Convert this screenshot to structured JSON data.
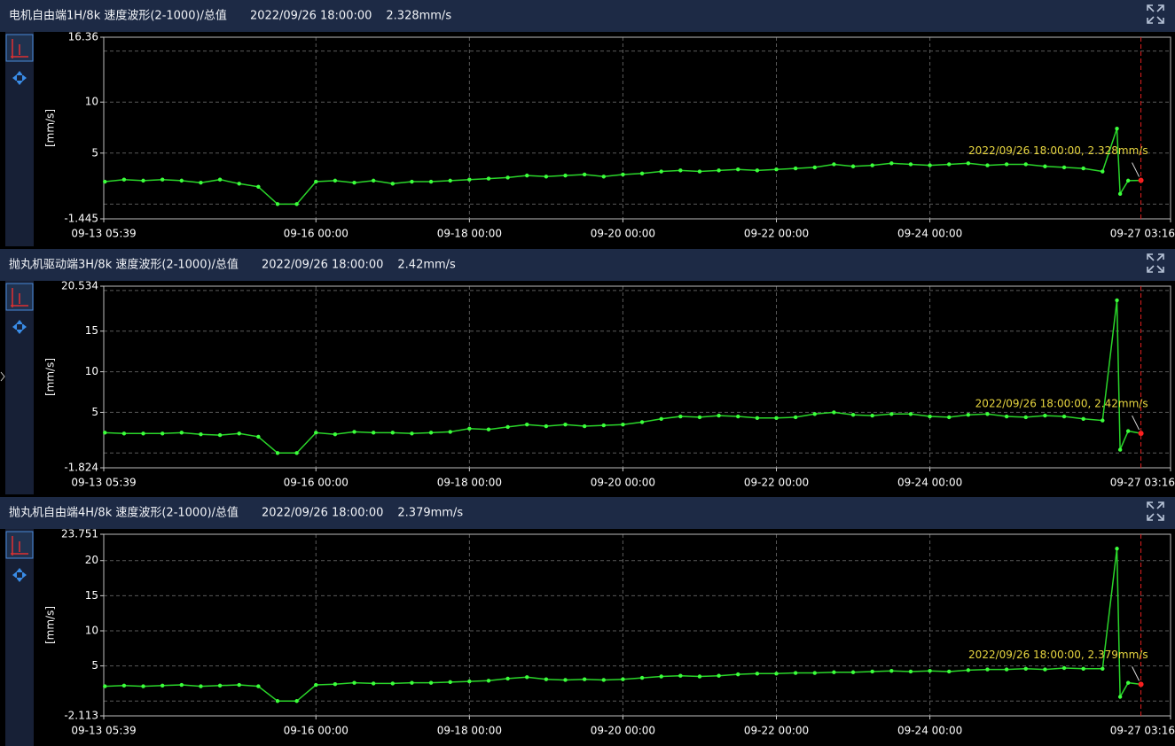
{
  "chart_data": [
    {
      "type": "line",
      "title": "电机自由端1H/8k 速度波形(2-1000)/总值",
      "time": "2022/09/26 18:00:00",
      "value_text": "2.328mm/s",
      "y_label": "[mm/s]",
      "annotation": "2022/09/26 18:00:00, 2.328mm/s",
      "xlim": [
        "09-13 05:39",
        "09-27 03:16"
      ],
      "xticks": [
        "09-13 05:39",
        "09-16 00:00",
        "09-18 00:00",
        "09-20 00:00",
        "09-22 00:00",
        "09-24 00:00",
        "09-27 03:16"
      ],
      "ylim": [
        -1.445,
        16.36
      ],
      "yticks": [
        -1.445,
        5,
        10,
        16.36
      ],
      "ygrid": [
        0,
        15
      ],
      "grid": true,
      "x": [
        "09-13 06:00",
        "09-13 12:00",
        "09-13 18:00",
        "09-14 00:00",
        "09-14 06:00",
        "09-14 12:00",
        "09-14 18:00",
        "09-15 00:00",
        "09-15 06:00",
        "09-15 12:00",
        "09-15 18:00",
        "09-16 00:00",
        "09-16 06:00",
        "09-16 12:00",
        "09-16 18:00",
        "09-17 00:00",
        "09-17 06:00",
        "09-17 12:00",
        "09-17 18:00",
        "09-18 00:00",
        "09-18 06:00",
        "09-18 12:00",
        "09-18 18:00",
        "09-19 00:00",
        "09-19 06:00",
        "09-19 12:00",
        "09-19 18:00",
        "09-20 00:00",
        "09-20 06:00",
        "09-20 12:00",
        "09-20 18:00",
        "09-21 00:00",
        "09-21 06:00",
        "09-21 12:00",
        "09-21 18:00",
        "09-22 00:00",
        "09-22 06:00",
        "09-22 12:00",
        "09-22 18:00",
        "09-23 00:00",
        "09-23 06:00",
        "09-23 12:00",
        "09-23 18:00",
        "09-24 00:00",
        "09-24 06:00",
        "09-24 12:00",
        "09-24 18:00",
        "09-25 00:00",
        "09-25 06:00",
        "09-25 12:00",
        "09-25 18:00",
        "09-26 00:00",
        "09-26 06:00",
        "09-26 10:30",
        "09-26 11:30",
        "09-26 14:00",
        "09-26 18:00"
      ],
      "series": [
        {
          "color": "#2ad62a",
          "values": [
            2.2,
            2.4,
            2.3,
            2.4,
            2.3,
            2.1,
            2.4,
            2.0,
            1.7,
            0.0,
            0.0,
            2.2,
            2.3,
            2.1,
            2.3,
            2.0,
            2.2,
            2.2,
            2.3,
            2.4,
            2.5,
            2.6,
            2.8,
            2.7,
            2.8,
            2.9,
            2.7,
            2.9,
            3.0,
            3.2,
            3.3,
            3.2,
            3.3,
            3.4,
            3.3,
            3.4,
            3.5,
            3.6,
            3.9,
            3.7,
            3.8,
            4.0,
            3.9,
            3.8,
            3.9,
            4.0,
            3.8,
            3.9,
            3.9,
            3.7,
            3.6,
            3.5,
            3.2,
            7.4,
            1.0,
            2.3,
            2.328
          ]
        }
      ]
    },
    {
      "type": "line",
      "title": "抛丸机驱动端3H/8k 速度波形(2-1000)/总值",
      "time": "2022/09/26 18:00:00",
      "value_text": "2.42mm/s",
      "y_label": "[mm/s]",
      "annotation": "2022/09/26 18:00:00, 2.42mm/s",
      "xlim": [
        "09-13 05:39",
        "09-27 03:16"
      ],
      "xticks": [
        "09-13 05:39",
        "09-16 00:00",
        "09-18 00:00",
        "09-20 00:00",
        "09-22 00:00",
        "09-24 00:00",
        "09-27 03:16"
      ],
      "ylim": [
        -1.824,
        20.534
      ],
      "yticks": [
        -1.824,
        5,
        10,
        15,
        20.534
      ],
      "ygrid": [
        0,
        20
      ],
      "grid": true,
      "x": [
        "09-13 06:00",
        "09-13 12:00",
        "09-13 18:00",
        "09-14 00:00",
        "09-14 06:00",
        "09-14 12:00",
        "09-14 18:00",
        "09-15 00:00",
        "09-15 06:00",
        "09-15 12:00",
        "09-15 18:00",
        "09-16 00:00",
        "09-16 06:00",
        "09-16 12:00",
        "09-16 18:00",
        "09-17 00:00",
        "09-17 06:00",
        "09-17 12:00",
        "09-17 18:00",
        "09-18 00:00",
        "09-18 06:00",
        "09-18 12:00",
        "09-18 18:00",
        "09-19 00:00",
        "09-19 06:00",
        "09-19 12:00",
        "09-19 18:00",
        "09-20 00:00",
        "09-20 06:00",
        "09-20 12:00",
        "09-20 18:00",
        "09-21 00:00",
        "09-21 06:00",
        "09-21 12:00",
        "09-21 18:00",
        "09-22 00:00",
        "09-22 06:00",
        "09-22 12:00",
        "09-22 18:00",
        "09-23 00:00",
        "09-23 06:00",
        "09-23 12:00",
        "09-23 18:00",
        "09-24 00:00",
        "09-24 06:00",
        "09-24 12:00",
        "09-24 18:00",
        "09-25 00:00",
        "09-25 06:00",
        "09-25 12:00",
        "09-25 18:00",
        "09-26 00:00",
        "09-26 06:00",
        "09-26 10:30",
        "09-26 11:30",
        "09-26 14:00",
        "09-26 18:00"
      ],
      "series": [
        {
          "color": "#2ad62a",
          "values": [
            2.5,
            2.4,
            2.4,
            2.4,
            2.5,
            2.3,
            2.2,
            2.4,
            2.0,
            0.0,
            0.0,
            2.5,
            2.3,
            2.6,
            2.5,
            2.5,
            2.4,
            2.5,
            2.6,
            3.0,
            2.9,
            3.2,
            3.5,
            3.3,
            3.5,
            3.3,
            3.4,
            3.5,
            3.8,
            4.2,
            4.5,
            4.4,
            4.6,
            4.5,
            4.3,
            4.3,
            4.4,
            4.8,
            5.0,
            4.7,
            4.6,
            4.8,
            4.8,
            4.5,
            4.4,
            4.7,
            4.8,
            4.5,
            4.4,
            4.6,
            4.5,
            4.2,
            4.0,
            18.8,
            0.4,
            2.7,
            2.42
          ]
        }
      ]
    },
    {
      "type": "line",
      "title": "抛丸机自由端4H/8k 速度波形(2-1000)/总值",
      "time": "2022/09/26 18:00:00",
      "value_text": "2.379mm/s",
      "y_label": "[mm/s]",
      "annotation": "2022/09/26 18:00:00, 2.379mm/s",
      "xlim": [
        "09-13 05:39",
        "09-27 03:16"
      ],
      "xticks": [
        "09-13 05:39",
        "09-16 00:00",
        "09-18 00:00",
        "09-20 00:00",
        "09-22 00:00",
        "09-24 00:00",
        "09-27 03:16"
      ],
      "ylim": [
        -2.113,
        23.751
      ],
      "yticks": [
        -2.113,
        5,
        10,
        15,
        20,
        23.751
      ],
      "ygrid": [
        0
      ],
      "grid": true,
      "x": [
        "09-13 06:00",
        "09-13 12:00",
        "09-13 18:00",
        "09-14 00:00",
        "09-14 06:00",
        "09-14 12:00",
        "09-14 18:00",
        "09-15 00:00",
        "09-15 06:00",
        "09-15 12:00",
        "09-15 18:00",
        "09-16 00:00",
        "09-16 06:00",
        "09-16 12:00",
        "09-16 18:00",
        "09-17 00:00",
        "09-17 06:00",
        "09-17 12:00",
        "09-17 18:00",
        "09-18 00:00",
        "09-18 06:00",
        "09-18 12:00",
        "09-18 18:00",
        "09-19 00:00",
        "09-19 06:00",
        "09-19 12:00",
        "09-19 18:00",
        "09-20 00:00",
        "09-20 06:00",
        "09-20 12:00",
        "09-20 18:00",
        "09-21 00:00",
        "09-21 06:00",
        "09-21 12:00",
        "09-21 18:00",
        "09-22 00:00",
        "09-22 06:00",
        "09-22 12:00",
        "09-22 18:00",
        "09-23 00:00",
        "09-23 06:00",
        "09-23 12:00",
        "09-23 18:00",
        "09-24 00:00",
        "09-24 06:00",
        "09-24 12:00",
        "09-24 18:00",
        "09-25 00:00",
        "09-25 06:00",
        "09-25 12:00",
        "09-25 18:00",
        "09-26 00:00",
        "09-26 06:00",
        "09-26 10:30",
        "09-26 11:30",
        "09-26 14:00",
        "09-26 18:00"
      ],
      "series": [
        {
          "color": "#2ad62a",
          "values": [
            2.1,
            2.2,
            2.1,
            2.2,
            2.3,
            2.1,
            2.2,
            2.3,
            2.1,
            0.0,
            0.0,
            2.3,
            2.4,
            2.6,
            2.5,
            2.5,
            2.6,
            2.6,
            2.7,
            2.8,
            2.9,
            3.2,
            3.4,
            3.1,
            3.0,
            3.1,
            3.0,
            3.1,
            3.3,
            3.5,
            3.6,
            3.5,
            3.6,
            3.8,
            3.9,
            3.9,
            4.0,
            4.0,
            4.1,
            4.1,
            4.2,
            4.3,
            4.2,
            4.3,
            4.2,
            4.4,
            4.5,
            4.5,
            4.6,
            4.5,
            4.7,
            4.6,
            4.6,
            21.7,
            0.6,
            2.6,
            2.379
          ]
        }
      ]
    }
  ]
}
